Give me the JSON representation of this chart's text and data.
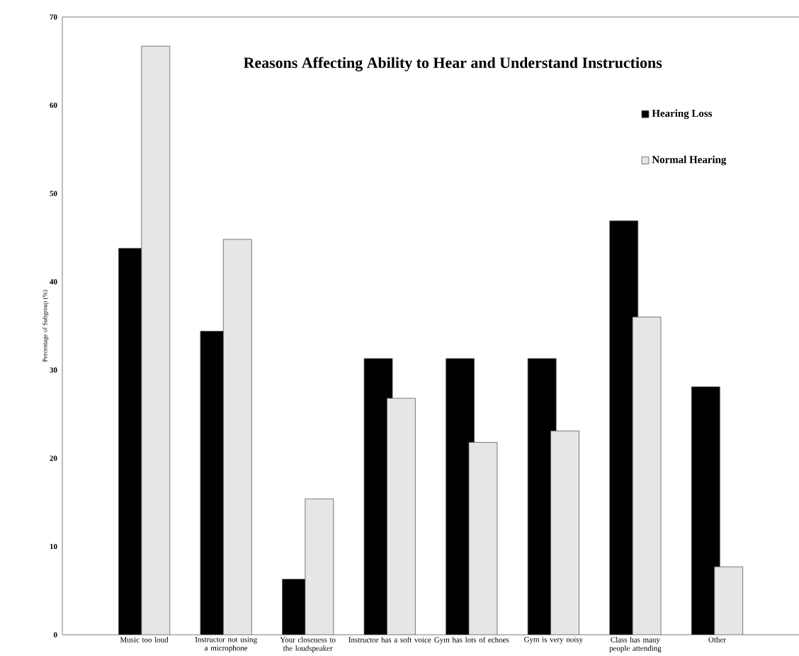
{
  "chart_data": {
    "type": "bar",
    "title": "Reasons Affecting Ability to Hear and Understand Instructions",
    "ylabel": "Percentage of Subgroup (%)",
    "categories": [
      "Music too loud",
      "Instructor not using a microphone",
      "Your closeness to the loudspeaker",
      "Instructor has a soft voice",
      "Gym has lots of echoes",
      "Gym is very noisy",
      "Class has many people attending",
      "Other"
    ],
    "series": [
      {
        "name": "Hearing Loss",
        "color": "#000000",
        "values": [
          43.8,
          34.4,
          6.3,
          31.3,
          31.3,
          31.3,
          46.9,
          28.1
        ]
      },
      {
        "name": "Normal Hearing",
        "color": "#e6e6e6",
        "values": [
          66.7,
          44.8,
          15.4,
          26.8,
          21.8,
          23.1,
          36.0,
          7.7
        ]
      }
    ],
    "ylim": [
      0,
      70
    ],
    "yticks": [
      0,
      10,
      20,
      30,
      40,
      50,
      60,
      70
    ],
    "grid": false,
    "legend": "top right"
  }
}
